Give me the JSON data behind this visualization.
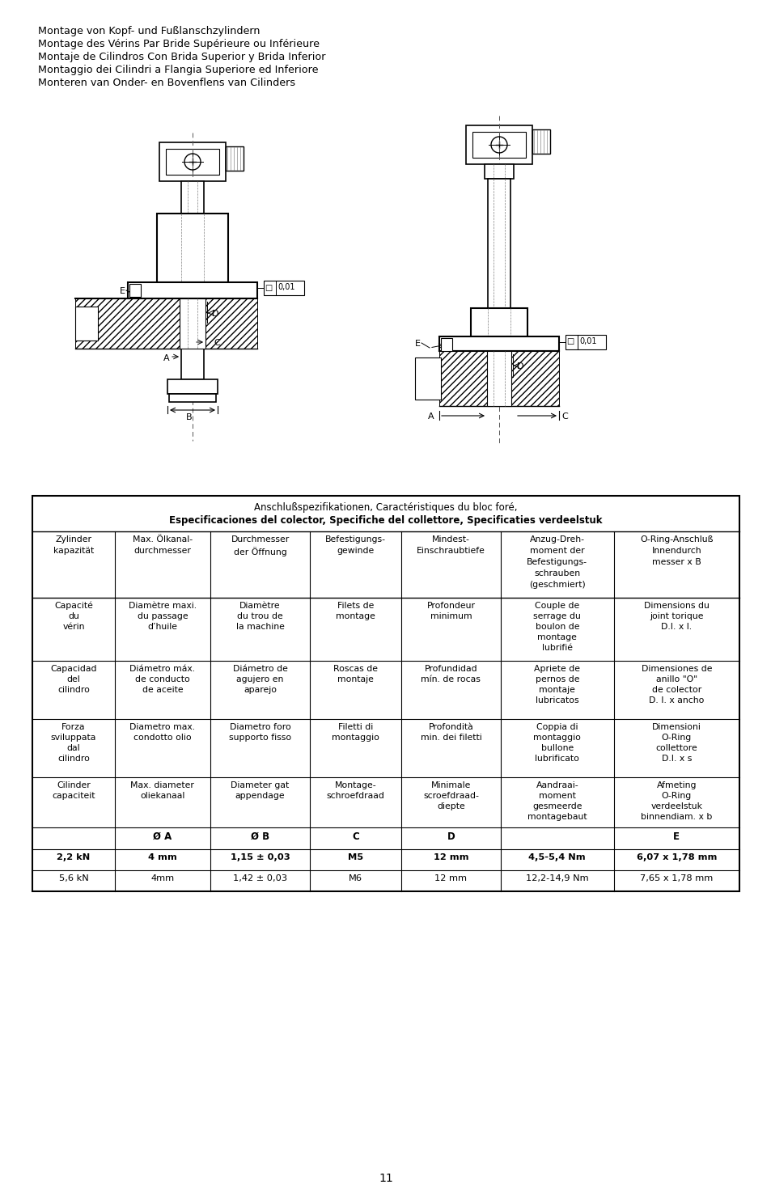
{
  "header_lines": [
    "Montage von Kopf- und Fußlanschzylindern",
    "Montage des Vérins Par Bride Supérieure ou Inférieure",
    "Montaje de Cilindros Con Brida Superior y Brida Inferior",
    "Montaggio dei Cilindri a Flangia Superiore ed Inferiore",
    "Monteren van Onder- en Bovenflens van Cilinders"
  ],
  "table_title_line1": "Anschlußspezifikationen, Caractéristiques du bloc foré,",
  "table_title_line2": "Especificaciones del colector, Specifiche del collettore, Specificaties verdeelstuk",
  "col_headers": [
    [
      "Zylinder",
      "kapazität"
    ],
    [
      "Max. Ölkanal-",
      "durchmesser"
    ],
    [
      "Durchmesser",
      "der Öffnung"
    ],
    [
      "Befestigungs-",
      "gewinde"
    ],
    [
      "Mindest-",
      "Einschraubtiefe"
    ],
    [
      "Anzug-Dreh-",
      "moment der",
      "Befestigungs-",
      "schrauben",
      "(geschmiert)"
    ],
    [
      "O-Ring-Anschluß",
      "Innendurch",
      "messer x B"
    ]
  ],
  "row2": [
    [
      "Capacité",
      "du",
      "vérin"
    ],
    [
      "Diamètre maxi.",
      "du passage",
      "d’huile"
    ],
    [
      "Diamètre",
      "du trou de",
      "la machine"
    ],
    [
      "Filets de",
      "montage"
    ],
    [
      "Profondeur",
      "minimum"
    ],
    [
      "Couple de",
      "serrage du",
      "boulon de",
      "montage",
      "lubrifié"
    ],
    [
      "Dimensions du",
      "joint torique",
      "D.I. x l."
    ]
  ],
  "row3": [
    [
      "Capacidad",
      "del",
      "cilindro"
    ],
    [
      "Diámetro máx.",
      "de conducto",
      "de aceite"
    ],
    [
      "Diámetro de",
      "agujero en",
      "aparejo"
    ],
    [
      "Roscas de",
      "montaje"
    ],
    [
      "Profundidad",
      "mín. de rocas"
    ],
    [
      "Apriete de",
      "pernos de",
      "montaje",
      "lubricatos"
    ],
    [
      "Dimensiones de",
      "anillo \"O\"",
      "de colector",
      "D. I. x ancho"
    ]
  ],
  "row4": [
    [
      "Forza",
      "sviluppata",
      "dal",
      "cilindro"
    ],
    [
      "Diametro max.",
      "condotto olio"
    ],
    [
      "Diametro foro",
      "supporto fisso"
    ],
    [
      "Filetti di",
      "montaggio"
    ],
    [
      "Profondità",
      "min. dei filetti"
    ],
    [
      "Coppia di",
      "montaggio",
      "bullone",
      "lubrificato"
    ],
    [
      "Dimensioni",
      "O-Ring",
      "collettore",
      "D.I. x s"
    ]
  ],
  "row5": [
    [
      "Cilinder",
      "capaciteit"
    ],
    [
      "Max. diameter",
      "oliekanaal"
    ],
    [
      "Diameter gat",
      "appendage"
    ],
    [
      "Montage-",
      "schroefdraad"
    ],
    [
      "Minimale",
      "scroefdraad-",
      "diepte"
    ],
    [
      "Aandraai-",
      "moment",
      "gesmeerde",
      "montagebaut"
    ],
    [
      "Afmeting",
      "O-Ring",
      "verdeelstuk",
      "binnendiam. x b"
    ]
  ],
  "row_labels": [
    "",
    "Ø A",
    "Ø B",
    "C",
    "D",
    "",
    "E"
  ],
  "data_row1": [
    "2,2 kN",
    "4 mm",
    "1,15 ± 0,03",
    "M5",
    "12 mm",
    "4,5-5,4 Nm",
    "6,07 x 1,78 mm"
  ],
  "data_row2": [
    "5,6 kN",
    "4mm",
    "1,42 ± 0,03",
    "M6",
    "12 mm",
    "12,2-14,9 Nm",
    "7,65 x 1,78 mm"
  ],
  "page_number": "11",
  "bg_color": "#ffffff",
  "text_color": "#000000"
}
